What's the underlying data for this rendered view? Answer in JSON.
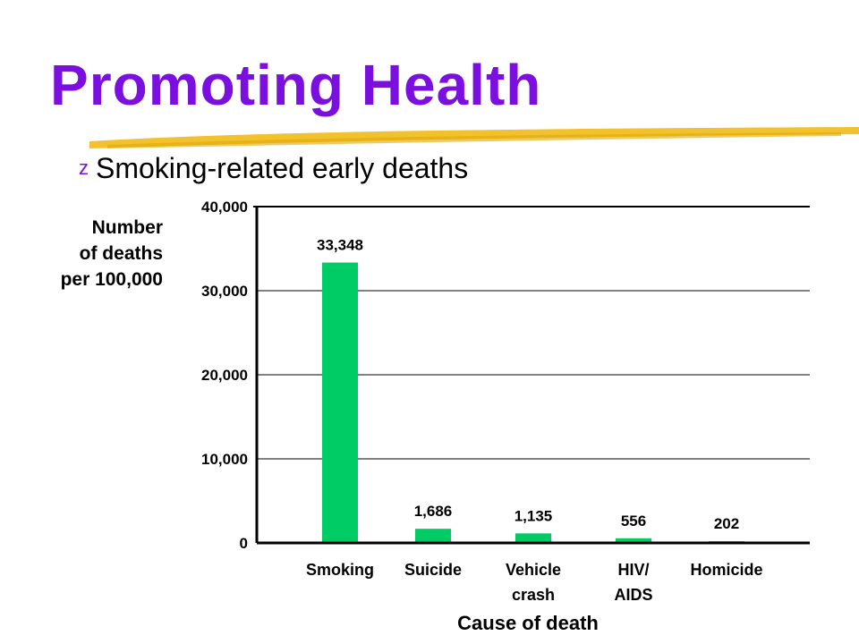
{
  "slide": {
    "title": "Promoting Health",
    "bullet": "Smoking-related early deaths",
    "bullet_glyph": "z",
    "title_color": "#7a0fe0",
    "accent_swoosh_color": "#f2c12e"
  },
  "chart_data": {
    "type": "bar",
    "categories": [
      "Smoking",
      "Suicide",
      "Vehicle crash",
      "HIV/ AIDS",
      "Homicide"
    ],
    "category_lines": [
      [
        "Smoking"
      ],
      [
        "Suicide"
      ],
      [
        "Vehicle",
        "crash"
      ],
      [
        "HIV/",
        "AIDS"
      ],
      [
        "Homicide"
      ]
    ],
    "values": [
      33348,
      1686,
      1135,
      556,
      202
    ],
    "value_labels": [
      "33,348",
      "1,686",
      "1,135",
      "556",
      "202"
    ],
    "ylabel": "Number\nof deaths\nper 100,000",
    "xlabel": "Cause of death",
    "ylim": [
      0,
      40000
    ],
    "yticks": [
      0,
      10000,
      20000,
      30000,
      40000
    ],
    "ytick_labels": [
      "0",
      "10,000",
      "20,000",
      "30,000",
      "40,000"
    ],
    "grid": true,
    "bar_color": "#00cc66",
    "axis_color": "#000000"
  }
}
